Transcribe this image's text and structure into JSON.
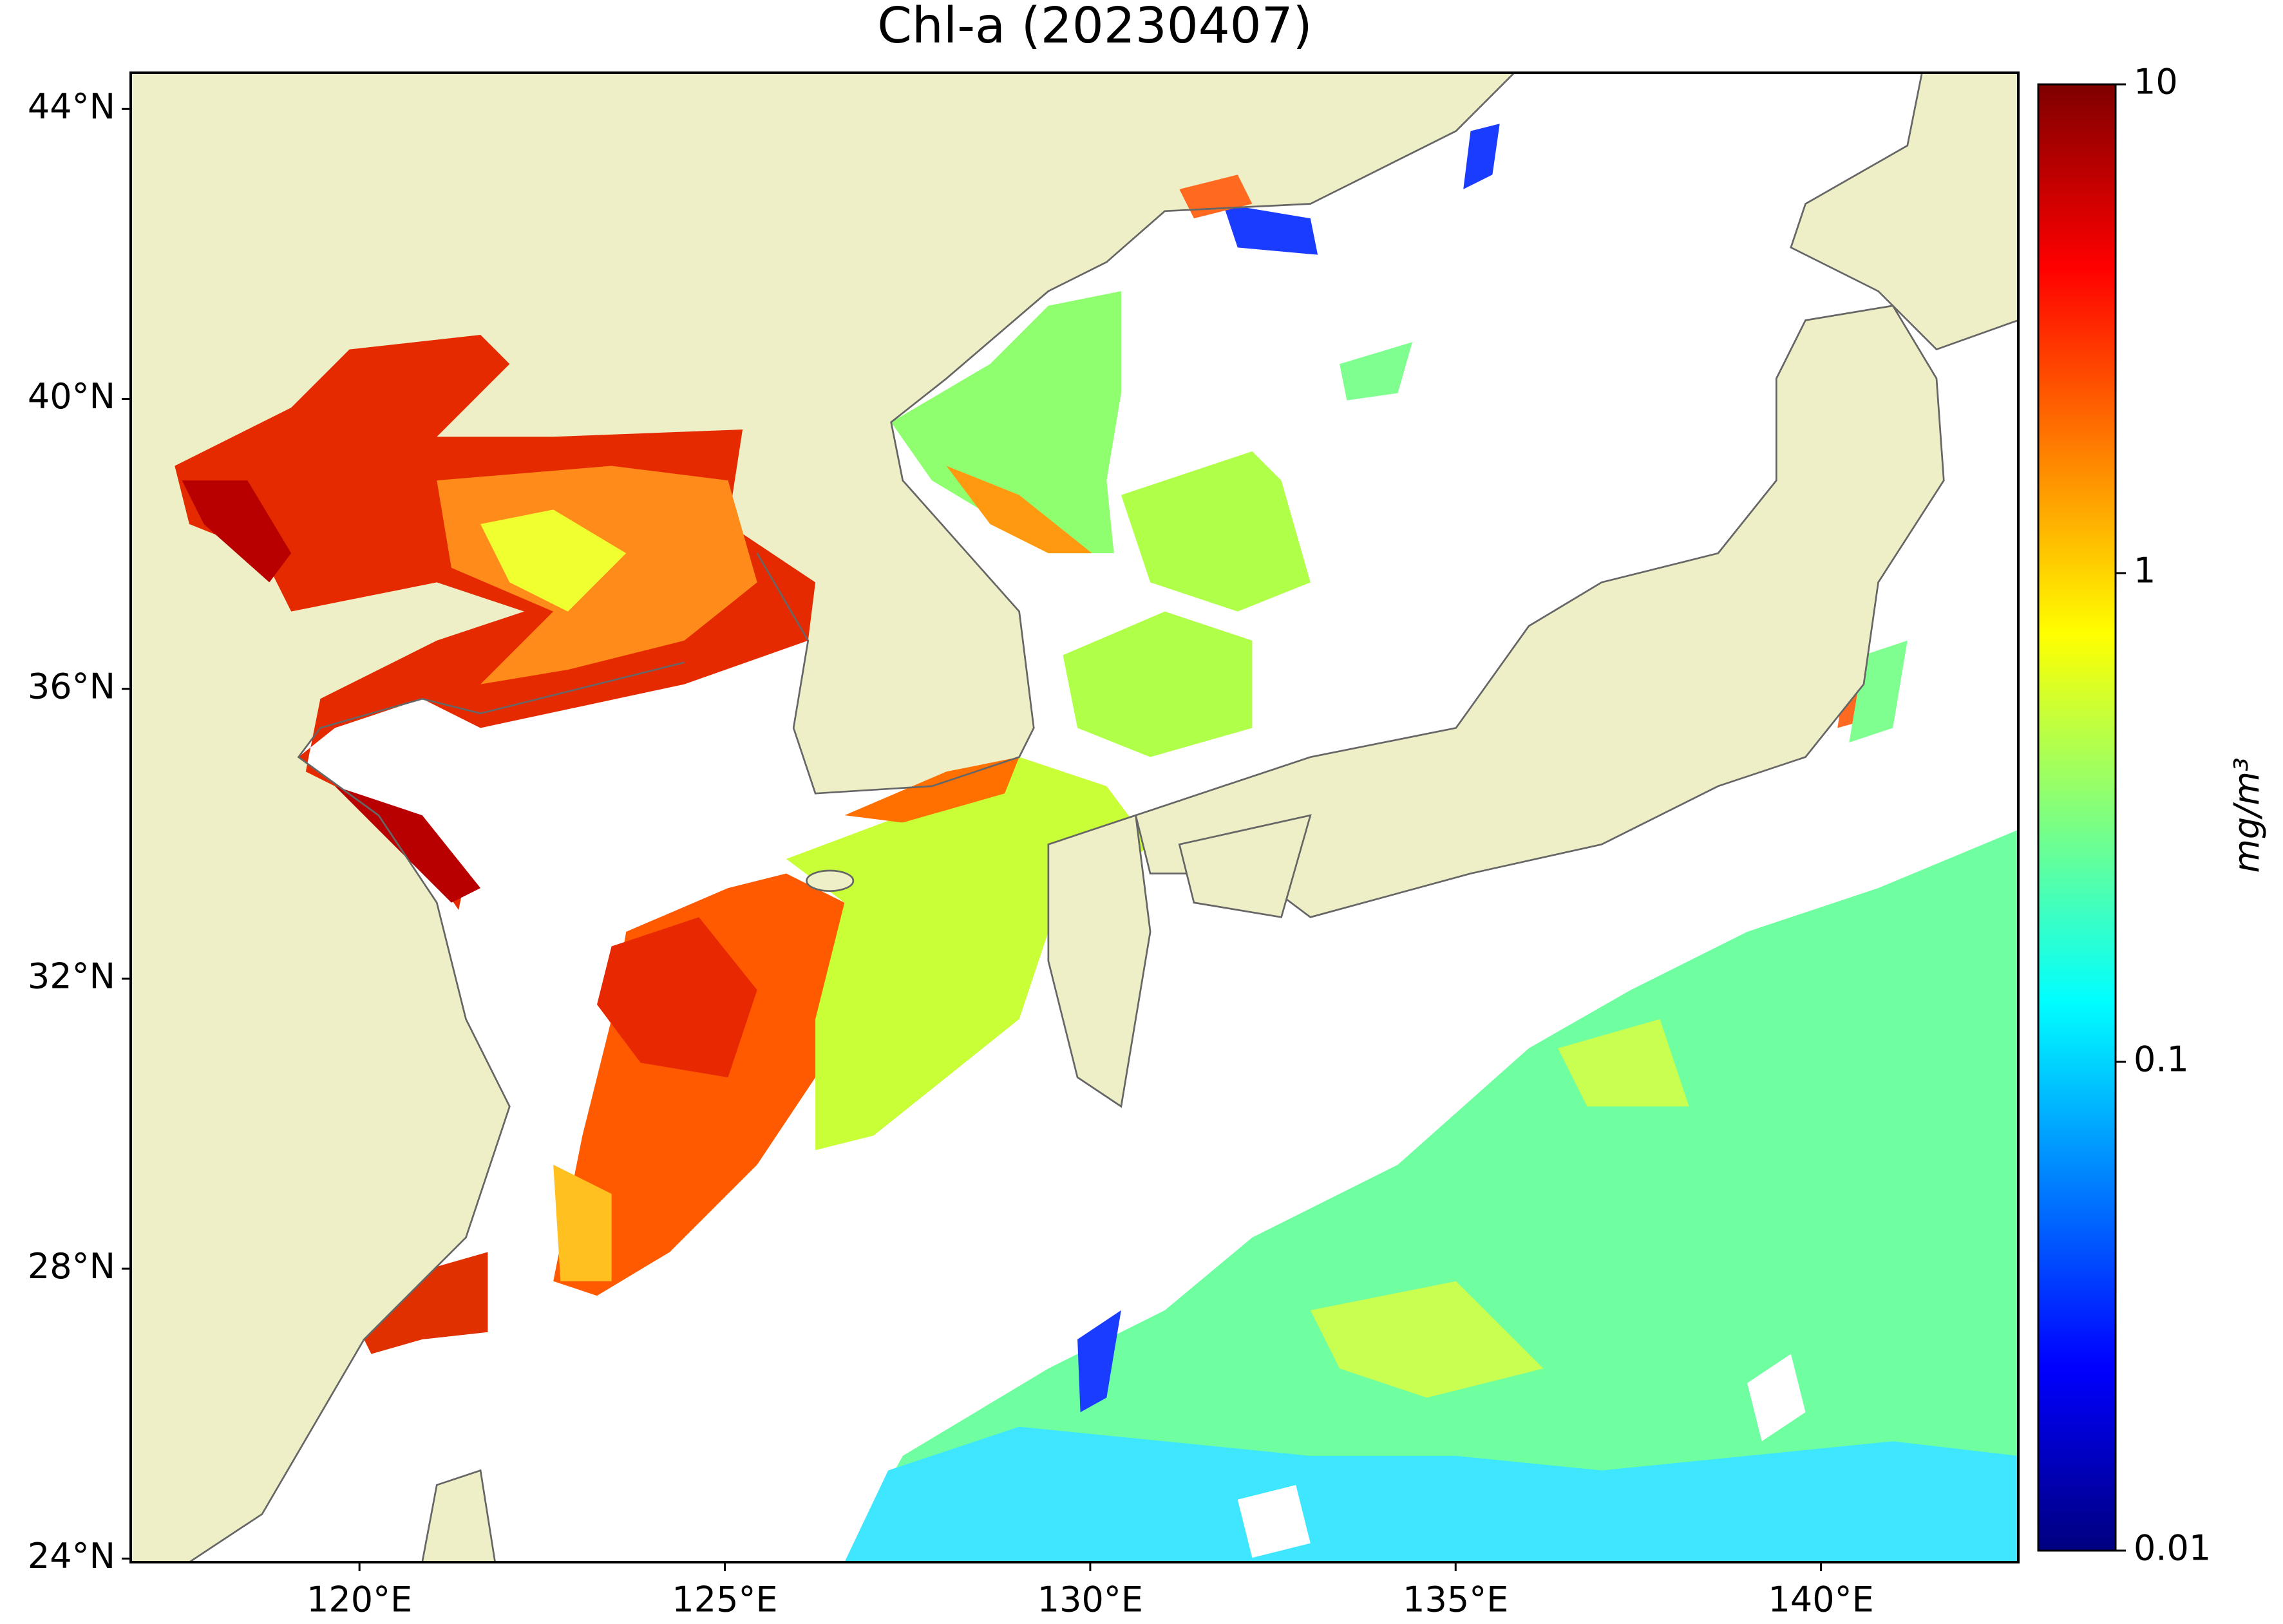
{
  "title": "Chl-a (20230407)",
  "map": {
    "xlim": [
      116.87,
      142.7
    ],
    "ylim": [
      23.95,
      44.5
    ],
    "lat_ticks": [
      {
        "value": 24,
        "label": "24°N"
      },
      {
        "value": 28,
        "label": "28°N"
      },
      {
        "value": 32,
        "label": "32°N"
      },
      {
        "value": 36,
        "label": "36°N"
      },
      {
        "value": 40,
        "label": "40°N"
      },
      {
        "value": 44,
        "label": "44°N"
      }
    ],
    "lon_ticks": [
      {
        "value": 120,
        "label": "120°E"
      },
      {
        "value": 125,
        "label": "125°E"
      },
      {
        "value": 130,
        "label": "130°E"
      },
      {
        "value": 135,
        "label": "135°E"
      },
      {
        "value": 140,
        "label": "140°E"
      }
    ]
  },
  "colorbar": {
    "label": "mg/m³",
    "scale": "log",
    "lim": [
      0.01,
      10
    ],
    "ticks": [
      0.01,
      0.1,
      1,
      10
    ],
    "colormap": [
      "#00007f",
      "#0000ff",
      "#007fff",
      "#00ffff",
      "#7fff7f",
      "#ffff00",
      "#ff7f00",
      "#ff0000",
      "#7f0000"
    ]
  }
}
